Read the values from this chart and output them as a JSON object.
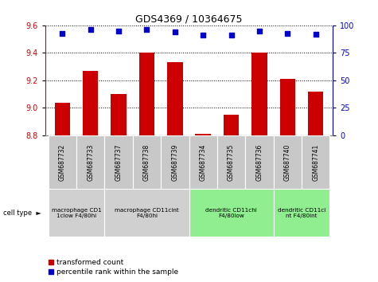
{
  "title": "GDS4369 / 10364675",
  "samples": [
    "GSM687732",
    "GSM687733",
    "GSM687737",
    "GSM687738",
    "GSM687739",
    "GSM687734",
    "GSM687735",
    "GSM687736",
    "GSM687740",
    "GSM687741"
  ],
  "bar_values": [
    9.04,
    9.27,
    9.1,
    9.4,
    9.33,
    8.81,
    8.95,
    9.4,
    9.21,
    9.12
  ],
  "dot_values": [
    93,
    96,
    95,
    96,
    94,
    91,
    91,
    95,
    93,
    92
  ],
  "ylim_min": 8.8,
  "ylim_max": 9.6,
  "yticks_left": [
    8.8,
    9.0,
    9.2,
    9.4,
    9.6
  ],
  "yticks_right": [
    0,
    25,
    50,
    75,
    100
  ],
  "bar_color": "#cc0000",
  "dot_color": "#0000cc",
  "bg_color": "#ffffff",
  "cell_type_groups": [
    {
      "label": "macrophage CD1\n1clow F4/80hi",
      "start": 0,
      "end": 2,
      "color": "#d0d0d0"
    },
    {
      "label": "macrophage CD11cint\nF4/80hi",
      "start": 2,
      "end": 5,
      "color": "#d0d0d0"
    },
    {
      "label": "dendritic CD11chi\nF4/80low",
      "start": 5,
      "end": 8,
      "color": "#90ee90"
    },
    {
      "label": "dendritic CD11ci\nnt F4/80int",
      "start": 8,
      "end": 10,
      "color": "#90ee90"
    }
  ],
  "legend_red_label": "transformed count",
  "legend_blue_label": "percentile rank within the sample",
  "sample_box_color": "#c8c8c8",
  "cell_type_label": "cell type"
}
